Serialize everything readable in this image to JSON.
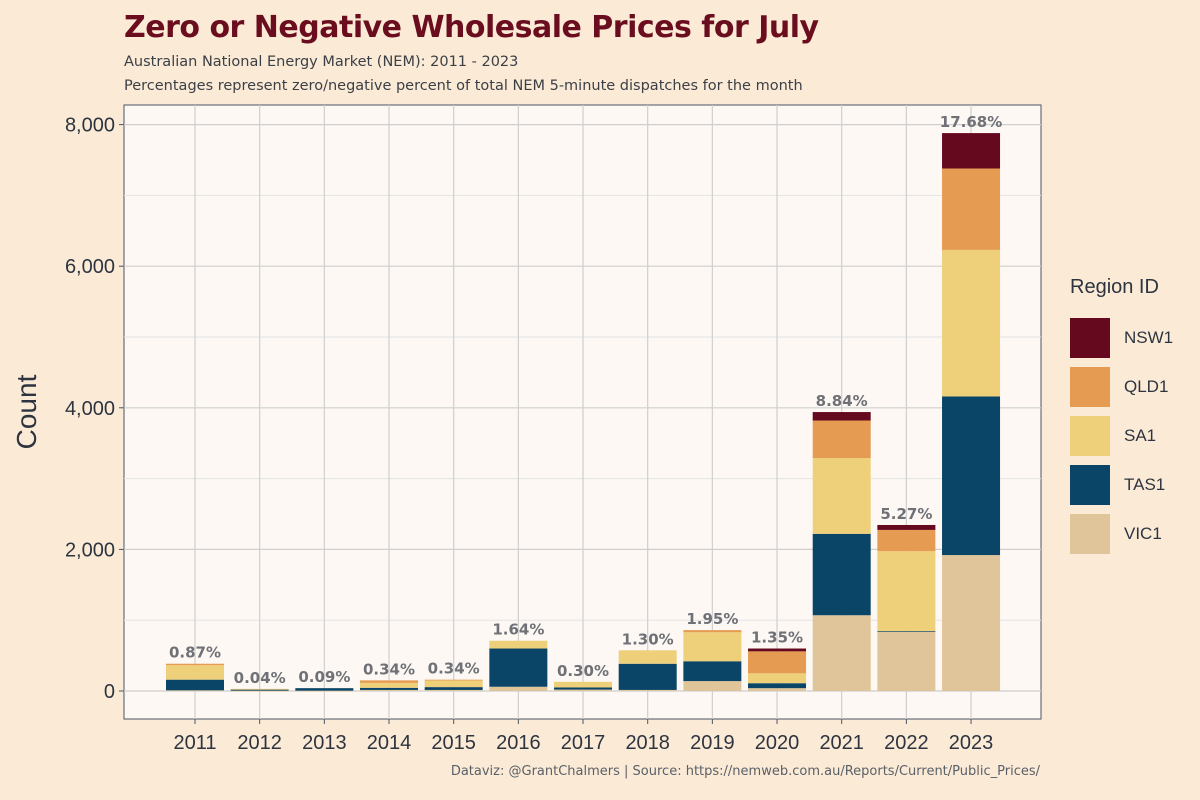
{
  "header": {
    "title": "Zero or Negative Wholesale Prices for July",
    "subtitle1": "Australian National Energy Market (NEM): 2011 - 2023",
    "subtitle2": "Percentages represent zero/negative percent of total NEM 5-minute dispatches for the month"
  },
  "caption": "Dataviz: @GrantChalmers | Source: https://nemweb.com.au/Reports/Current/Public_Prices/",
  "colors": {
    "background": "#fbebd6",
    "panel": "#fdf8f4",
    "NSW1": "#650a1e",
    "QLD1": "#e59c52",
    "SA1": "#eecf7a",
    "TAS1": "#0a4467",
    "VIC1": "#e0c59a"
  },
  "chart_data": {
    "type": "bar",
    "stacked": true,
    "title": "Zero or Negative Wholesale Prices for July",
    "xlabel": "",
    "ylabel": "Count",
    "ylim": [
      -400,
      8300
    ],
    "yticks": [
      0,
      2000,
      4000,
      6000,
      8000
    ],
    "ytick_labels": [
      "0",
      "2,000",
      "4,000",
      "6,000",
      "8,000"
    ],
    "grid": true,
    "legend_title": "Region ID",
    "legend_position": "right",
    "categories": [
      "2011",
      "2012",
      "2013",
      "2014",
      "2015",
      "2016",
      "2017",
      "2018",
      "2019",
      "2020",
      "2021",
      "2022",
      "2023"
    ],
    "series": [
      {
        "name": "VIC1",
        "values": [
          10,
          5,
          5,
          15,
          15,
          60,
          20,
          15,
          140,
          40,
          1070,
          840,
          1920
        ]
      },
      {
        "name": "TAS1",
        "values": [
          150,
          15,
          35,
          30,
          40,
          540,
          30,
          370,
          280,
          70,
          1150,
          5,
          2240
        ]
      },
      {
        "name": "SA1",
        "values": [
          205,
          10,
          0,
          70,
          95,
          110,
          80,
          190,
          410,
          140,
          1070,
          1130,
          2070
        ]
      },
      {
        "name": "QLD1",
        "values": [
          20,
          0,
          0,
          35,
          10,
          0,
          0,
          0,
          30,
          310,
          530,
          300,
          1150
        ]
      },
      {
        "name": "NSW1",
        "values": [
          0,
          0,
          0,
          0,
          0,
          0,
          0,
          0,
          0,
          40,
          120,
          70,
          500
        ]
      }
    ],
    "annotations": [
      "0.87%",
      "0.04%",
      "0.09%",
      "0.34%",
      "0.34%",
      "1.64%",
      "0.30%",
      "1.30%",
      "1.95%",
      "1.35%",
      "8.84%",
      "5.27%",
      "17.68%"
    ]
  }
}
